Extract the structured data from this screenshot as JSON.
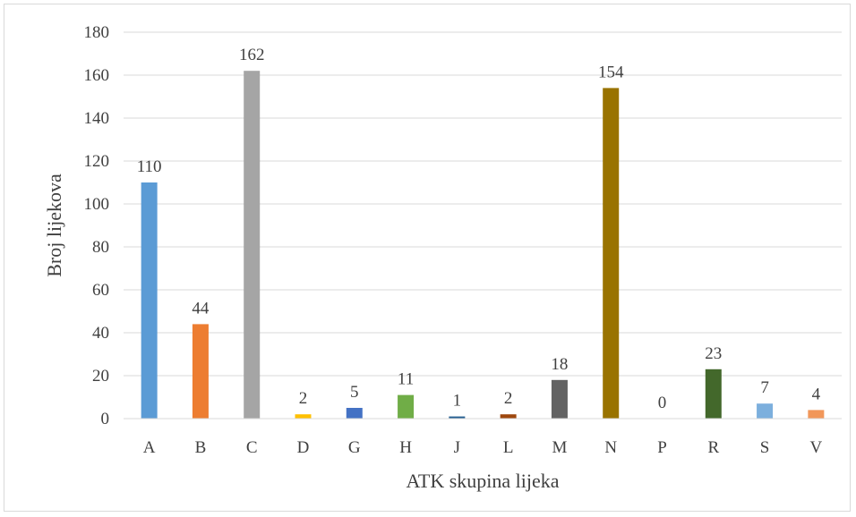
{
  "chart_data": {
    "type": "bar",
    "title": "",
    "xlabel": "ATK skupina lijeka",
    "ylabel": "Broj lijekova",
    "ylim": [
      0,
      180
    ],
    "yticks": [
      0,
      20,
      40,
      60,
      80,
      100,
      120,
      140,
      160,
      180
    ],
    "grid": true,
    "legend": "none",
    "categories": [
      "A",
      "B",
      "C",
      "D",
      "G",
      "H",
      "J",
      "L",
      "M",
      "N",
      "P",
      "R",
      "S",
      "V"
    ],
    "values": [
      110,
      44,
      162,
      2,
      5,
      11,
      1,
      2,
      18,
      154,
      0,
      23,
      7,
      4
    ],
    "colors": [
      "#5b9bd5",
      "#ed7d31",
      "#a5a5a5",
      "#ffc000",
      "#4472c4",
      "#70ad47",
      "#255e91",
      "#9e480e",
      "#636363",
      "#997300",
      "#264478",
      "#43682b",
      "#7cafdd",
      "#f1975a"
    ],
    "gridline_color": "#d9d9d9"
  }
}
